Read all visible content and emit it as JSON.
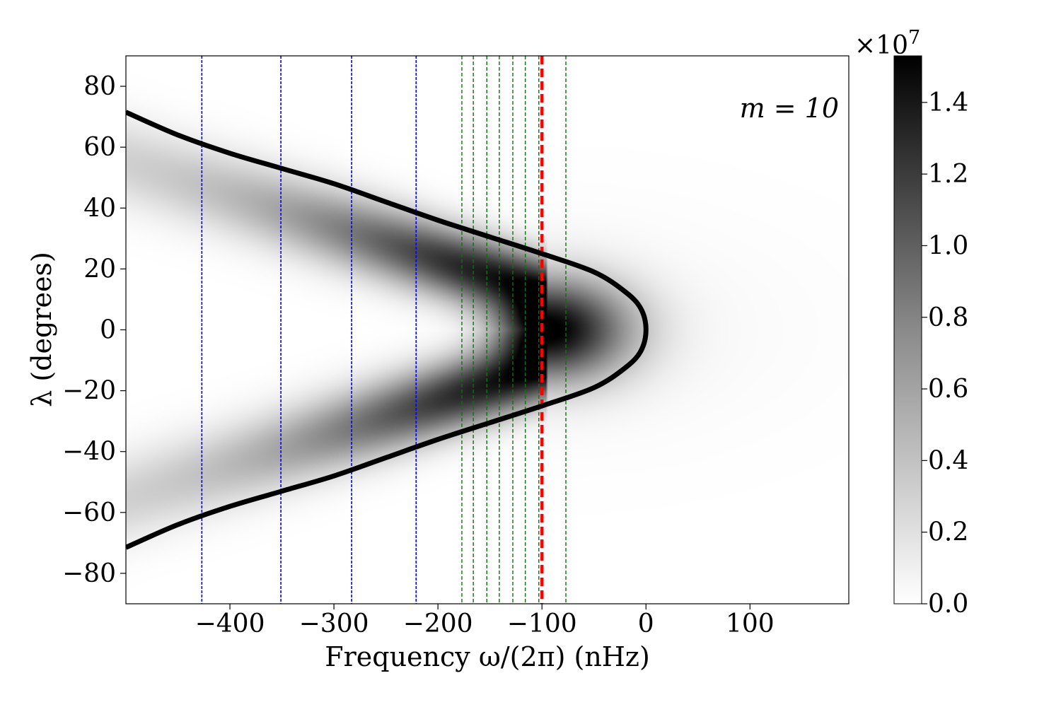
{
  "chart_data": {
    "type": "heatmap",
    "title": "",
    "annotation": "m = 10",
    "xlabel": "Frequency ω/(2π) (nHz)",
    "ylabel": "λ (degrees)",
    "xlim": [
      -500,
      195
    ],
    "ylim": [
      -90,
      90
    ],
    "xticks": [
      -400,
      -300,
      -200,
      -100,
      0,
      100
    ],
    "xtick_labels": [
      "−400",
      "−300",
      "−200",
      "−100",
      "0",
      "100"
    ],
    "yticks": [
      -80,
      -60,
      -40,
      -20,
      0,
      20,
      40,
      60,
      80
    ],
    "ytick_labels": [
      "−80",
      "−60",
      "−40",
      "−20",
      "0",
      "20",
      "40",
      "60",
      "80"
    ],
    "colorbar": {
      "scale_label": "×10",
      "scale_exponent": "7",
      "range": [
        0.0,
        1.53
      ],
      "ticks": [
        0.0,
        0.2,
        0.4,
        0.6,
        0.8,
        1.0,
        1.2,
        1.4
      ],
      "tick_labels": [
        "0.0",
        "0.2",
        "0.4",
        "0.6",
        "0.8",
        "1.0",
        "1.2",
        "1.4"
      ],
      "colormap": "greys"
    },
    "heatmap_model": {
      "peak_value": 1.52,
      "peak_frequency": -95,
      "peak_latitude": 0,
      "band_latitude_at_peak": 12,
      "band_latitude_at_-500": 55
    },
    "turning_curve": {
      "color": "#000000",
      "points": [
        {
          "x": 0,
          "y": 0
        },
        {
          "x": -5,
          "y": 7
        },
        {
          "x": -20,
          "y": 12.5
        },
        {
          "x": -50,
          "y": 19
        },
        {
          "x": -100,
          "y": 25
        },
        {
          "x": -150,
          "y": 30.5
        },
        {
          "x": -200,
          "y": 36
        },
        {
          "x": -250,
          "y": 42
        },
        {
          "x": -300,
          "y": 48
        },
        {
          "x": -350,
          "y": 53
        },
        {
          "x": -400,
          "y": 58
        },
        {
          "x": -450,
          "y": 64
        },
        {
          "x": -500,
          "y": 71.5
        }
      ]
    },
    "blue_lines": {
      "color": "#0000ff",
      "x": [
        -427,
        -351,
        -283,
        -221
      ]
    },
    "green_lines": {
      "color": "#007a00",
      "x": [
        -177,
        -166,
        -153,
        -141,
        -128,
        -116,
        -103,
        -77
      ]
    },
    "red_line": {
      "color": "#ff0000",
      "x": -100
    },
    "colors": {
      "axis": "#000000",
      "background": "#ffffff"
    }
  }
}
